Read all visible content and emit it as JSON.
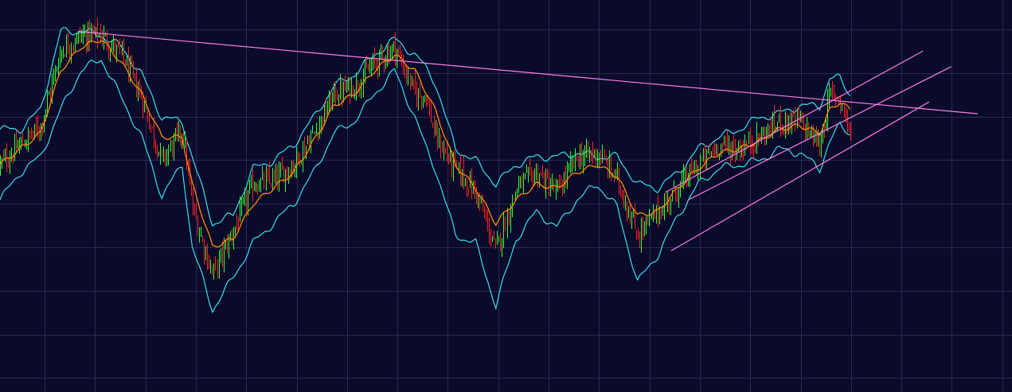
{
  "colors": {
    "background": "#0a0a2a",
    "grid": "#2a2a55",
    "bollinger": "#38e0f0",
    "moving_average": "#ff8c00",
    "candle_up": "#33ff33",
    "candle_down": "#ff2222",
    "trendline": "#ff7ce6"
  },
  "chart_data": {
    "type": "line",
    "title": "",
    "xlabel": "",
    "ylabel": "",
    "grid": true,
    "legend": "none",
    "xlim": [
      0,
      100
    ],
    "ylim": [
      0,
      100
    ],
    "series": [
      {
        "role": "price",
        "style": "candlesticks",
        "x": [
          0,
          2,
          4,
          6,
          8,
          10,
          12,
          14,
          16,
          18,
          19,
          21,
          23,
          25,
          27,
          29,
          31,
          33,
          35,
          37,
          39,
          41,
          42,
          43,
          45,
          47,
          49,
          51,
          53,
          55,
          57,
          59,
          61,
          63,
          65,
          67,
          69,
          71,
          73,
          75,
          77,
          79,
          81,
          82,
          83,
          84
        ],
        "values": [
          58,
          63,
          68,
          87,
          91,
          91,
          86,
          75,
          59,
          67,
          47,
          30,
          41,
          53,
          54,
          58,
          66,
          76,
          78,
          84,
          88,
          76,
          76,
          65,
          57,
          51,
          36,
          52,
          56,
          51,
          60,
          61,
          54,
          40,
          46,
          52,
          58,
          63,
          62,
          65,
          69,
          69,
          63,
          76,
          75,
          66
        ]
      },
      {
        "role": "moving-average",
        "x": [
          0,
          2,
          4,
          6,
          8,
          10,
          12,
          14,
          16,
          18,
          19,
          21,
          23,
          25,
          27,
          29,
          31,
          33,
          35,
          37,
          39,
          41,
          42,
          43,
          45,
          47,
          49,
          51,
          53,
          55,
          57,
          59,
          61,
          63,
          65,
          67,
          69,
          71,
          73,
          75,
          77,
          79,
          81,
          82,
          83,
          84
        ],
        "values": [
          58,
          62,
          66,
          82,
          88,
          90,
          84,
          76,
          65,
          65,
          53,
          37,
          39,
          48,
          52,
          56,
          64,
          73,
          76,
          82,
          86,
          82,
          77,
          72,
          58,
          52,
          43,
          49,
          53,
          52,
          56,
          58,
          55,
          45,
          46,
          52,
          57,
          61,
          62,
          64,
          67,
          68,
          66,
          72,
          74,
          72
        ]
      },
      {
        "role": "bollinger-upper",
        "x": [
          0,
          2,
          4,
          6,
          8,
          10,
          12,
          14,
          16,
          18,
          19,
          21,
          23,
          25,
          27,
          29,
          31,
          33,
          35,
          37,
          39,
          41,
          42,
          43,
          45,
          47,
          49,
          51,
          53,
          55,
          57,
          59,
          61,
          63,
          65,
          67,
          69,
          71,
          73,
          75,
          77,
          79,
          81,
          82,
          83,
          84
        ],
        "values": [
          67,
          67,
          72,
          92,
          92,
          91,
          88,
          81,
          70,
          69,
          60,
          43,
          45,
          57,
          59,
          63,
          70,
          78,
          81,
          86,
          90,
          86,
          83,
          79,
          62,
          59,
          53,
          58,
          60,
          60,
          61,
          60,
          60,
          53,
          52,
          56,
          62,
          65,
          67,
          70,
          71,
          73,
          73,
          80,
          80,
          76
        ]
      },
      {
        "role": "bollinger-lower",
        "x": [
          0,
          2,
          4,
          6,
          8,
          10,
          12,
          14,
          16,
          18,
          19,
          21,
          23,
          25,
          27,
          29,
          31,
          33,
          35,
          37,
          39,
          41,
          42,
          43,
          45,
          47,
          49,
          51,
          53,
          55,
          57,
          59,
          61,
          63,
          65,
          67,
          69,
          71,
          73,
          75,
          77,
          79,
          81,
          82,
          83,
          84
        ],
        "values": [
          49,
          56,
          60,
          72,
          82,
          85,
          75,
          65,
          50,
          58,
          37,
          21,
          29,
          38,
          43,
          48,
          56,
          66,
          69,
          76,
          82,
          70,
          63,
          57,
          40,
          38,
          22,
          39,
          46,
          42,
          49,
          53,
          47,
          28,
          35,
          45,
          53,
          57,
          58,
          59,
          62,
          61,
          57,
          64,
          68,
          66
        ]
      },
      {
        "role": "trendline-resistance",
        "x": [
          7.7,
          96.6
        ],
        "values": [
          92,
          71
        ]
      },
      {
        "role": "channel-upper",
        "x": [
          65.8,
          91.2
        ],
        "values": [
          51,
          87
        ]
      },
      {
        "role": "channel-middle",
        "x": [
          68,
          94
        ],
        "values": [
          49,
          83
        ]
      },
      {
        "role": "channel-lower",
        "x": [
          66.3,
          91.8
        ],
        "values": [
          36,
          74
        ]
      }
    ]
  }
}
